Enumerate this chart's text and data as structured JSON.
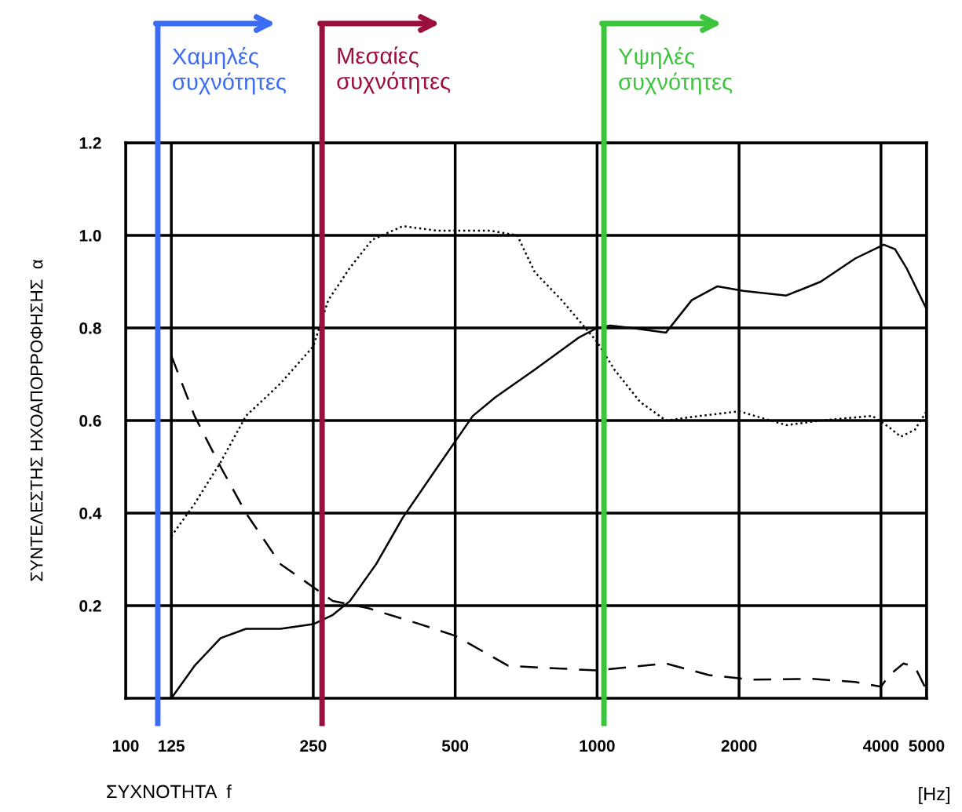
{
  "chart_data": {
    "type": "line",
    "xlabel": "ΣΥΧΝΟΤΗΤΑ  f",
    "ylabel": "ΣΥΝΤΕΛΕΣΤΗΣ ΗΧΟΑΠΟΡΡΟΦΗΣΗΣ  α",
    "annotations": [
      "[Hz]"
    ],
    "xlim": [
      100,
      5000
    ],
    "xticks": [
      100,
      125,
      250,
      500,
      1000,
      2000,
      4000,
      5000
    ],
    "ylim": [
      0,
      1.2
    ],
    "log": "x",
    "yticks": [
      0.2,
      0.4,
      0.6,
      0.8,
      {
        "value": 1.0,
        "label": "1.0"
      },
      1.2
    ],
    "grid": true,
    "series": [
      {
        "color": "#000000",
        "line_style": "solid",
        "x": [
          125,
          140,
          159,
          180,
          213,
          250,
          275,
          299,
          340,
          387,
          459,
          545,
          608,
          738,
          917,
          1000,
          1065,
          1183,
          1400,
          1587,
          1800,
          2042,
          2520,
          2981,
          3527,
          4055,
          4284,
          4528,
          5000
        ],
        "values": [
          0,
          0.07,
          0.13,
          0.15,
          0.15,
          0.16,
          0.18,
          0.21,
          0.29,
          0.39,
          0.5,
          0.61,
          0.65,
          0.71,
          0.78,
          0.8,
          0.805,
          0.8,
          0.79,
          0.86,
          0.89,
          0.88,
          0.87,
          0.9,
          0.95,
          0.98,
          0.97,
          0.93,
          0.84
        ]
      },
      {
        "color": "#000000",
        "line_style": "dotted",
        "x": [
          125,
          140,
          159,
          180,
          213,
          250,
          269,
          299,
          333,
          387,
          459,
          595,
          677,
          738,
          841,
          1000,
          1088,
          1234,
          1400,
          1655,
          2000,
          2520,
          2981,
          3834,
          4168,
          4405,
          4719,
          5000
        ],
        "values": [
          0.35,
          0.42,
          0.51,
          0.61,
          0.68,
          0.76,
          0.86,
          0.93,
          0.99,
          1.02,
          1.01,
          1.01,
          1.0,
          0.92,
          0.86,
          0.77,
          0.71,
          0.64,
          0.6,
          0.61,
          0.62,
          0.59,
          0.6,
          0.61,
          0.585,
          0.565,
          0.58,
          0.62
        ]
      },
      {
        "color": "#000000",
        "line_style": "dashed",
        "x": [
          125,
          140,
          159,
          180,
          213,
          250,
          275,
          326,
          421,
          500,
          648,
          805,
          1000,
          1183,
          1400,
          1727,
          2130,
          2859,
          3527,
          4000,
          4168,
          4464,
          4719,
          5000
        ],
        "values": [
          0.74,
          0.61,
          0.5,
          0.4,
          0.29,
          0.24,
          0.21,
          0.195,
          0.16,
          0.135,
          0.07,
          0.065,
          0.06,
          0.068,
          0.075,
          0.05,
          0.04,
          0.042,
          0.035,
          0.025,
          0.05,
          0.075,
          0.068,
          0.017
        ]
      }
    ],
    "ref_lines": [
      {
        "axis": "x",
        "value": 117,
        "label": "Χαμηλές\nσυχνότητες",
        "color": "#3b6cf2"
      },
      {
        "axis": "x",
        "value": 261,
        "label": "Μεσαίες\nσυχνότητες",
        "color": "#9a0f3e"
      },
      {
        "axis": "x",
        "value": 1034,
        "label": "Υψηλές\nσυχνότητες",
        "color": "#3cc43c"
      }
    ]
  }
}
